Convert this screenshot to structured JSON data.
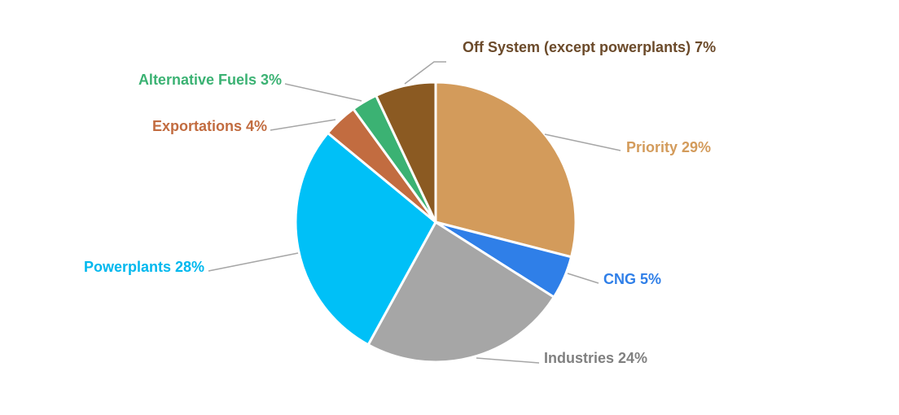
{
  "chart_data": {
    "type": "pie",
    "title": "",
    "slices": [
      {
        "name": "Priority",
        "value": 29,
        "label": "Priority 29%",
        "color": "#d39b5b",
        "label_color": "#d39b5b"
      },
      {
        "name": "CNG",
        "value": 5,
        "label": "CNG 5%",
        "color": "#2f7fe8",
        "label_color": "#2f7fe8"
      },
      {
        "name": "Industries",
        "value": 24,
        "label": "Industries 24%",
        "color": "#a6a6a6",
        "label_color": "#808080"
      },
      {
        "name": "Powerplants",
        "value": 28,
        "label": "Powerplants 28%",
        "color": "#00c0f7",
        "label_color": "#00b8ee"
      },
      {
        "name": "Exportations",
        "value": 4,
        "label": "Exportations 4%",
        "color": "#c26c40",
        "label_color": "#c26c40"
      },
      {
        "name": "Alternative Fuels",
        "value": 3,
        "label": "Alternative Fuels 3%",
        "color": "#3bb273",
        "label_color": "#3bb273"
      },
      {
        "name": "Off System (except powerplants)",
        "value": 7,
        "label": "Off System (except powerplants) 7%",
        "color": "#8b5a22",
        "label_color": "#6b4a2a"
      }
    ],
    "start_angle": "12 o'clock",
    "direction": "clockwise",
    "legend": "none",
    "data_labels": "outside with leader lines"
  }
}
